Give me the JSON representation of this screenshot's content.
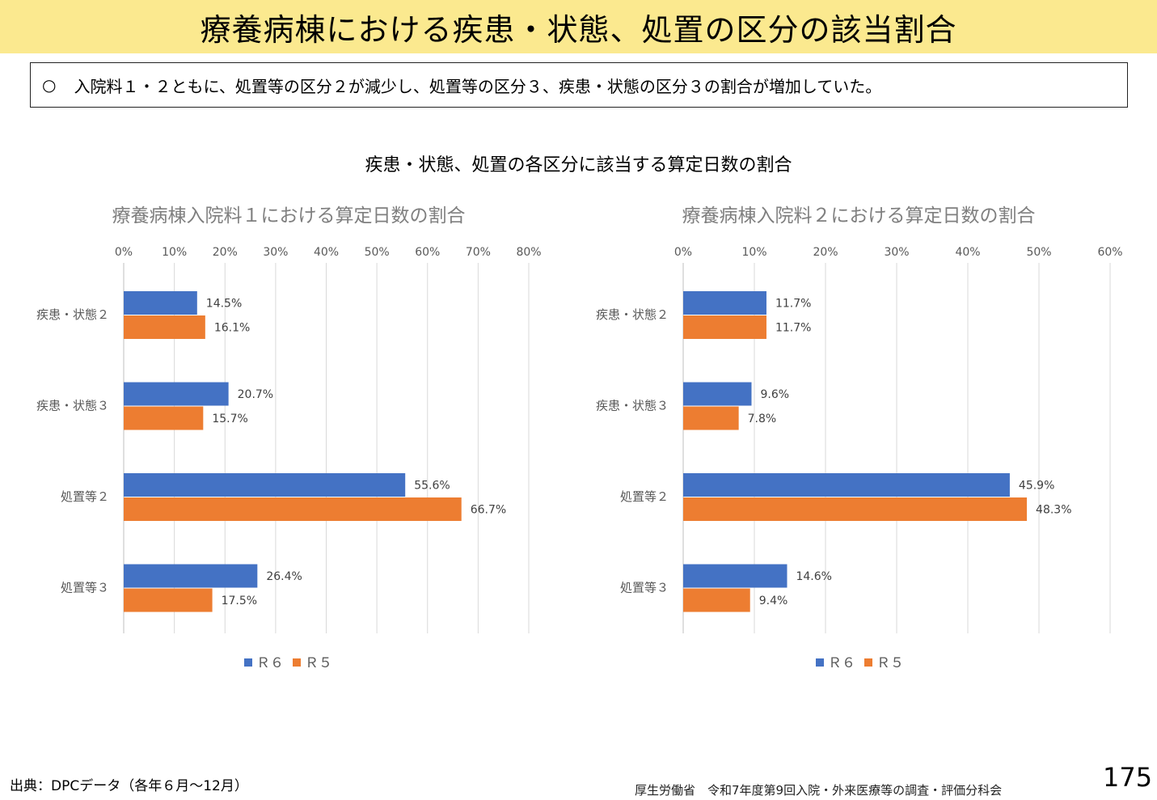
{
  "header": {
    "title": "療養病棟における疾患・状態、処置の区分の該当割合"
  },
  "summary": {
    "bullet": "○",
    "text": "入院料１・２ともに、処置等の区分２が減少し、処置等の区分３、疾患・状態の区分３の割合が増加していた。"
  },
  "section_title": "疾患・状態、処置の各区分に該当する算定日数の割合",
  "colors": {
    "r6": "#4472c4",
    "r5": "#ed7d31",
    "grid": "#d9d9d9",
    "axis_text": "#595959",
    "title_text": "#7f7f7f"
  },
  "chart_data": [
    {
      "type": "bar",
      "orientation": "horizontal",
      "title": "療養病棟入院料１における算定日数の割合",
      "categories": [
        "疾患・状態２",
        "疾患・状態３",
        "処置等２",
        "処置等３"
      ],
      "series": [
        {
          "name": "Ｒ６",
          "values": [
            14.5,
            20.7,
            55.6,
            26.4
          ],
          "labels": [
            "14.5%",
            "20.7%",
            "55.6%",
            "26.4%"
          ]
        },
        {
          "name": "Ｒ５",
          "values": [
            16.1,
            15.7,
            66.7,
            17.5
          ],
          "labels": [
            "16.1%",
            "15.7%",
            "66.7%",
            "17.5%"
          ]
        }
      ],
      "xlim": [
        0,
        80
      ],
      "x_ticks": [
        "0%",
        "10%",
        "20%",
        "30%",
        "40%",
        "50%",
        "60%",
        "70%",
        "80%"
      ],
      "grid": true,
      "legend": "bottom"
    },
    {
      "type": "bar",
      "orientation": "horizontal",
      "title": "療養病棟入院料２における算定日数の割合",
      "categories": [
        "疾患・状態２",
        "疾患・状態３",
        "処置等２",
        "処置等３"
      ],
      "series": [
        {
          "name": "Ｒ６",
          "values": [
            11.7,
            9.6,
            45.9,
            14.6
          ],
          "labels": [
            "11.7%",
            "9.6%",
            "45.9%",
            "14.6%"
          ]
        },
        {
          "name": "Ｒ５",
          "values": [
            11.7,
            7.8,
            48.3,
            9.4
          ],
          "labels": [
            "11.7%",
            "7.8%",
            "48.3%",
            "9.4%"
          ]
        }
      ],
      "xlim": [
        0,
        60
      ],
      "x_ticks": [
        "0%",
        "10%",
        "20%",
        "30%",
        "40%",
        "50%",
        "60%"
      ],
      "grid": true,
      "legend": "bottom"
    }
  ],
  "footer": {
    "source": "出典：DPCデータ（各年６月～12月）",
    "organization": "厚生労働省　令和7年度第9回入院・外来医療等の調査・評価分科会",
    "page_number": "175"
  }
}
